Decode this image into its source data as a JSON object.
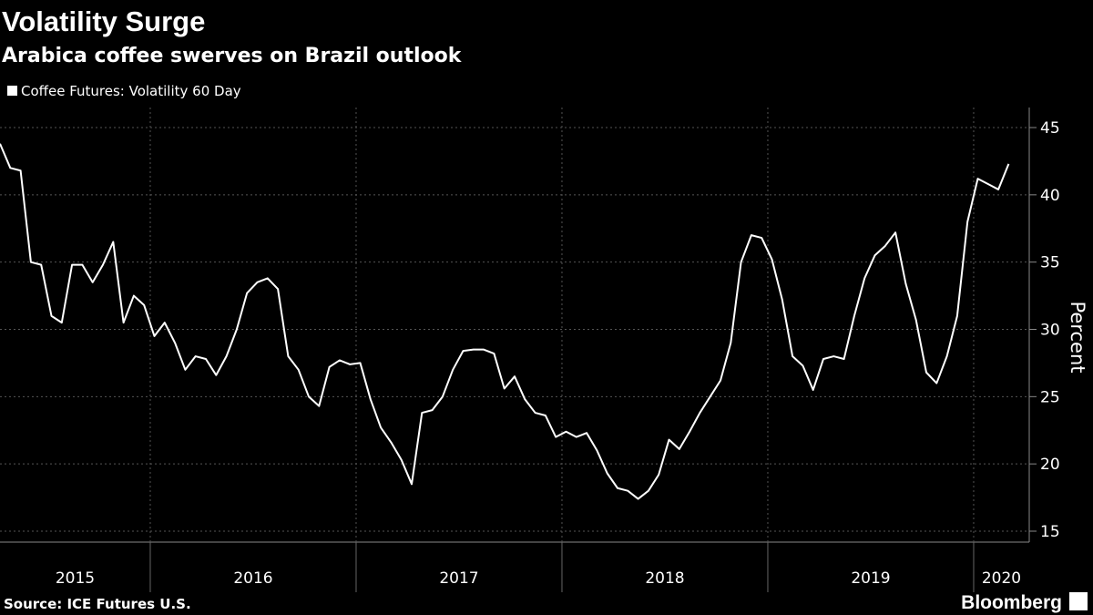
{
  "chart_data": {
    "type": "line",
    "title": "Volatility Surge",
    "subtitle": "Arabica coffee swerves on Brazil outlook",
    "y_axis_label": "Percent",
    "source": "Source: ICE Futures U.S.",
    "brand": "Bloomberg",
    "x": [
      2015.27,
      2015.32,
      2015.37,
      2015.42,
      2015.47,
      2015.52,
      2015.57,
      2015.62,
      2015.67,
      2015.72,
      2015.77,
      2015.82,
      2015.87,
      2015.92,
      2015.97,
      2016.02,
      2016.07,
      2016.12,
      2016.17,
      2016.22,
      2016.27,
      2016.32,
      2016.37,
      2016.42,
      2016.47,
      2016.52,
      2016.57,
      2016.62,
      2016.67,
      2016.72,
      2016.77,
      2016.82,
      2016.87,
      2016.92,
      2016.97,
      2017.02,
      2017.07,
      2017.12,
      2017.17,
      2017.22,
      2017.27,
      2017.32,
      2017.37,
      2017.42,
      2017.47,
      2017.52,
      2017.57,
      2017.62,
      2017.67,
      2017.72,
      2017.77,
      2017.82,
      2017.87,
      2017.92,
      2017.97,
      2018.02,
      2018.07,
      2018.12,
      2018.17,
      2018.22,
      2018.27,
      2018.32,
      2018.37,
      2018.42,
      2018.47,
      2018.52,
      2018.57,
      2018.62,
      2018.67,
      2018.72,
      2018.77,
      2018.82,
      2018.87,
      2018.92,
      2018.97,
      2019.02,
      2019.07,
      2019.12,
      2019.17,
      2019.22,
      2019.27,
      2019.32,
      2019.37,
      2019.42,
      2019.47,
      2019.52,
      2019.57,
      2019.62,
      2019.67,
      2019.72,
      2019.77,
      2019.82,
      2019.87,
      2019.92,
      2019.97,
      2020.02,
      2020.07,
      2020.12,
      2020.17
    ],
    "series": [
      {
        "name": "Coffee Futures: Volatility 60 Day",
        "color": "#ffffff",
        "values": [
          43.8,
          42,
          41.8,
          35,
          34.8,
          31,
          30.5,
          34.8,
          34.8,
          33.5,
          34.8,
          36.5,
          30.5,
          32.5,
          31.8,
          29.5,
          30.5,
          29,
          27,
          28,
          27.8,
          26.6,
          28,
          30,
          32.7,
          33.5,
          33.8,
          33,
          28,
          27,
          25,
          24.3,
          27.2,
          27.7,
          27.4,
          27.5,
          24.8,
          22.7,
          21.6,
          20.3,
          18.5,
          23.8,
          24,
          25,
          27,
          28.4,
          28.5,
          28.5,
          28.2,
          25.6,
          26.5,
          24.8,
          23.8,
          23.6,
          22,
          22.4,
          22,
          22.3,
          21,
          19.3,
          18.2,
          18,
          17.4,
          18,
          19.2,
          21.8,
          21.1,
          22.4,
          23.8,
          25,
          26.2,
          29,
          35,
          37,
          36.8,
          35.2,
          32.2,
          28,
          27.3,
          25.5,
          27.8,
          28,
          27.8,
          31,
          33.8,
          35.5,
          36.2,
          37.2,
          33.4,
          30.7,
          26.8,
          26,
          28,
          31,
          38,
          41.2,
          40.8,
          40.4,
          42.3
        ]
      }
    ],
    "xlim": [
      2015.27,
      2020.27
    ],
    "xticks": [
      2015,
      2016,
      2017,
      2018,
      2019,
      2020
    ],
    "ylim": [
      15,
      45
    ],
    "yticks": [
      15,
      20,
      25,
      30,
      35,
      40,
      45
    ],
    "grid": true
  }
}
